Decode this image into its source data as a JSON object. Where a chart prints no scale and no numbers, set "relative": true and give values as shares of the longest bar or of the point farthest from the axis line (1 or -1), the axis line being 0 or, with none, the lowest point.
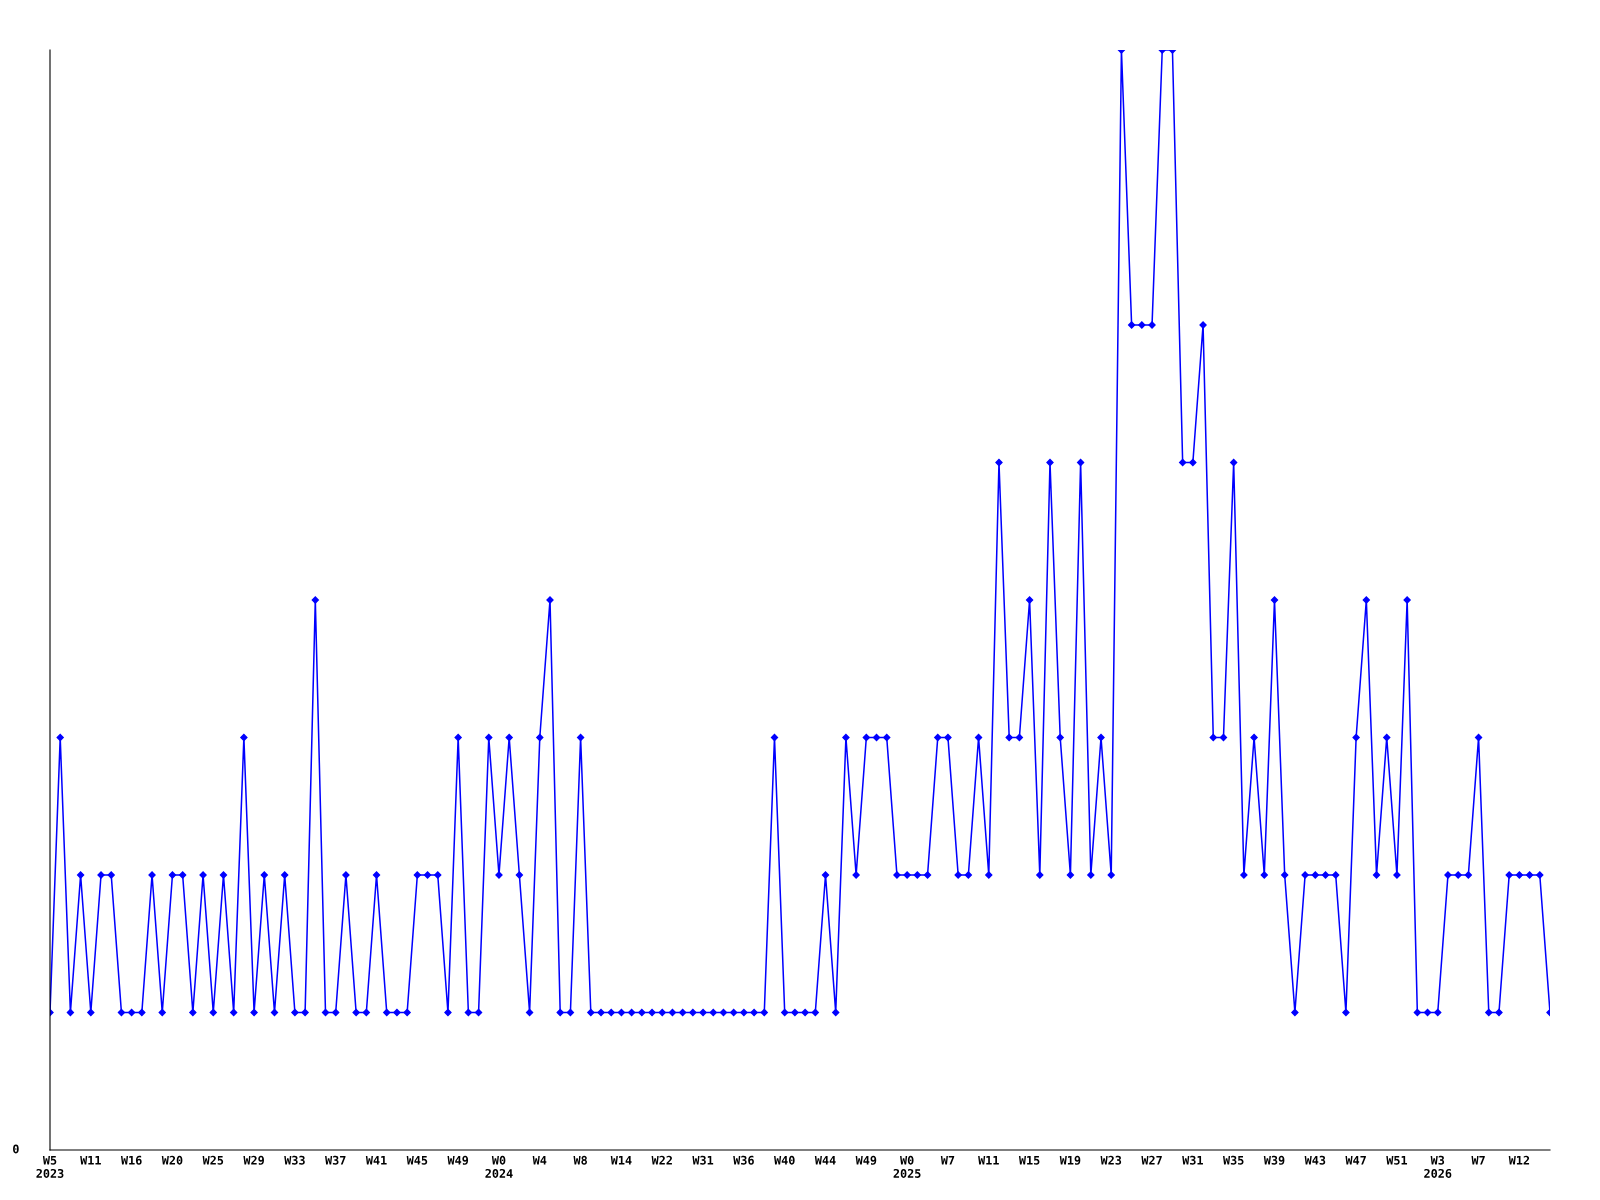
{
  "chart_data": {
    "type": "line",
    "relative": true,
    "marker": "diamond",
    "line_style": "solid",
    "categories": [
      "W5\n2023",
      null,
      null,
      null,
      "W11",
      null,
      null,
      null,
      "W16",
      null,
      null,
      null,
      "W20",
      null,
      null,
      null,
      "W25",
      null,
      null,
      null,
      "W29",
      null,
      null,
      null,
      "W33",
      null,
      null,
      null,
      "W37",
      null,
      null,
      null,
      "W41",
      null,
      null,
      null,
      "W45",
      null,
      null,
      null,
      "W49",
      null,
      null,
      null,
      "W0\n2024",
      null,
      null,
      null,
      "W4",
      null,
      null,
      null,
      "W8",
      null,
      null,
      null,
      "W14",
      null,
      null,
      null,
      "W22",
      null,
      null,
      null,
      "W31",
      null,
      null,
      null,
      "W36",
      null,
      null,
      null,
      "W40",
      null,
      null,
      null,
      "W44",
      null,
      null,
      null,
      "W49",
      null,
      null,
      null,
      "W0\n2025",
      null,
      null,
      null,
      "W7",
      null,
      null,
      null,
      "W11",
      null,
      null,
      null,
      "W15",
      null,
      null,
      null,
      "W19",
      null,
      null,
      null,
      "W23",
      null,
      null,
      null,
      "W27",
      null,
      null,
      null,
      "W31",
      null,
      null,
      null,
      "W35",
      null,
      null,
      null,
      "W39",
      null,
      null,
      null,
      "W43",
      null,
      null,
      null,
      "W47",
      null,
      null,
      null,
      "W51",
      null,
      null,
      null,
      "W3\n2026",
      null,
      null,
      null,
      "W7",
      null,
      null,
      null,
      "W12",
      null,
      null,
      null
    ],
    "series": [
      {
        "color": "#0000ff",
        "values": [
          0.125,
          0.375,
          0.125,
          0.25,
          0.125,
          0.25,
          0.25,
          0.125,
          0.125,
          0.125,
          0.25,
          0.125,
          0.25,
          0.25,
          0.125,
          0.25,
          0.125,
          0.25,
          0.125,
          0.375,
          0.125,
          0.25,
          0.125,
          0.25,
          0.125,
          0.125,
          0.5,
          0.125,
          0.125,
          0.25,
          0.125,
          0.125,
          0.25,
          0.125,
          0.125,
          0.125,
          0.25,
          0.25,
          0.25,
          0.125,
          0.375,
          0.125,
          0.125,
          0.375,
          0.25,
          0.375,
          0.25,
          0.125,
          0.375,
          0.5,
          0.125,
          0.125,
          0.375,
          0.125,
          0.125,
          0.125,
          0.125,
          0.125,
          0.125,
          0.125,
          0.125,
          0.125,
          0.125,
          0.125,
          0.125,
          0.125,
          0.125,
          0.125,
          0.125,
          0.125,
          0.125,
          0.375,
          0.125,
          0.125,
          0.125,
          0.125,
          0.25,
          0.125,
          0.375,
          0.25,
          0.375,
          0.375,
          0.375,
          0.25,
          0.25,
          0.25,
          0.25,
          0.375,
          0.375,
          0.25,
          0.25,
          0.375,
          0.25,
          0.625,
          0.375,
          0.375,
          0.5,
          0.25,
          0.625,
          0.375,
          0.25,
          0.625,
          0.25,
          0.375,
          0.25,
          1,
          0.75,
          0.75,
          0.75,
          1,
          1,
          0.625,
          0.625,
          0.75,
          0.375,
          0.375,
          0.625,
          0.25,
          0.375,
          0.25,
          0.5,
          0.25,
          0.125,
          0.25,
          0.25,
          0.25,
          0.25,
          0.125,
          0.375,
          0.5,
          0.25,
          0.375,
          0.25,
          0.5,
          0.125,
          0.125,
          0.125,
          0.25,
          0.25,
          0.25,
          0.375,
          0.125,
          0.125,
          0.25,
          0.25,
          0.25,
          0.25,
          0.125
        ]
      }
    ],
    "annotations": [
      "0"
    ]
  }
}
